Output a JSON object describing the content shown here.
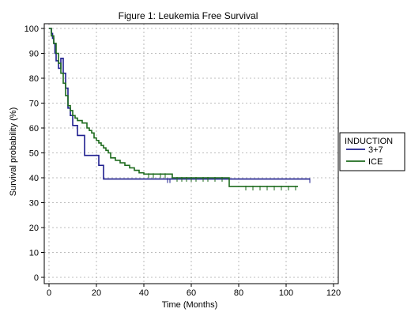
{
  "chart_data": {
    "type": "line",
    "title": "Figure 1: Leukemia Free Survival",
    "xlabel": "Time (Months)",
    "ylabel": "Survival probability (%)",
    "xlim": [
      0,
      120
    ],
    "ylim": [
      0,
      100
    ],
    "x_ticks": [
      0,
      20,
      40,
      60,
      80,
      100,
      120
    ],
    "y_ticks": [
      0,
      10,
      20,
      30,
      40,
      50,
      60,
      70,
      80,
      90,
      100
    ],
    "grid": true,
    "step": true,
    "legend": {
      "title": "INDUCTION",
      "placement": "right",
      "entries": [
        "3+7",
        "ICE"
      ]
    },
    "series": [
      {
        "name": "3+7",
        "color": "#1f1f8f",
        "x": [
          0,
          1,
          1.5,
          2,
          2.5,
          3,
          4,
          5,
          6,
          7,
          8,
          9,
          10,
          12,
          15,
          21,
          23,
          110
        ],
        "y": [
          100,
          98,
          96,
          94,
          90,
          87,
          84,
          88,
          82,
          76,
          68,
          65,
          61,
          57,
          49,
          45,
          39.5,
          39.5
        ],
        "censored": [
          {
            "x": 50,
            "y": 39.5
          },
          {
            "x": 51,
            "y": 39.5
          },
          {
            "x": 76,
            "y": 39.5
          },
          {
            "x": 110,
            "y": 39.5
          }
        ]
      },
      {
        "name": "ICE",
        "color": "#1e6b1e",
        "x": [
          0,
          1,
          2,
          3,
          4,
          5,
          6,
          7,
          8,
          9,
          10,
          11,
          12,
          14,
          16,
          17,
          18,
          19,
          20,
          21,
          22,
          23,
          24,
          25,
          26,
          28,
          30,
          32,
          34,
          36,
          38,
          40,
          52,
          76,
          105
        ],
        "y": [
          100,
          97,
          94,
          90,
          86,
          82,
          78,
          73,
          69,
          67,
          65,
          64,
          63,
          62,
          60,
          59,
          58,
          56,
          55,
          54,
          53,
          52,
          51,
          50,
          48,
          47,
          46,
          45,
          44,
          43,
          42,
          41.5,
          40,
          36.5,
          36.5
        ],
        "censored": [
          {
            "x": 42,
            "y": 41.5
          },
          {
            "x": 44,
            "y": 41.5
          },
          {
            "x": 47,
            "y": 41.5
          },
          {
            "x": 49,
            "y": 41.5
          },
          {
            "x": 54,
            "y": 40
          },
          {
            "x": 56,
            "y": 40
          },
          {
            "x": 58,
            "y": 40
          },
          {
            "x": 60,
            "y": 40
          },
          {
            "x": 62,
            "y": 40
          },
          {
            "x": 65,
            "y": 40
          },
          {
            "x": 67,
            "y": 40
          },
          {
            "x": 70,
            "y": 40
          },
          {
            "x": 73,
            "y": 40
          },
          {
            "x": 83,
            "y": 36.5
          },
          {
            "x": 86,
            "y": 36.5
          },
          {
            "x": 89,
            "y": 36.5
          },
          {
            "x": 92,
            "y": 36.5
          },
          {
            "x": 95,
            "y": 36.5
          },
          {
            "x": 98,
            "y": 36.5
          },
          {
            "x": 101,
            "y": 36.5
          },
          {
            "x": 104,
            "y": 36.5
          }
        ]
      }
    ]
  }
}
